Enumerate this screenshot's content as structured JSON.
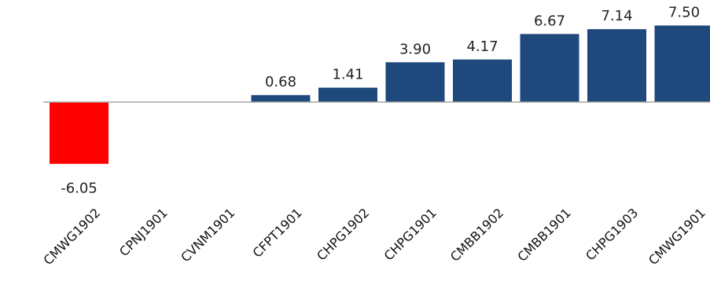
{
  "chart_data": {
    "type": "bar",
    "categories": [
      "CMWG1902",
      "CPNJ1901",
      "CVNM1901",
      "CFPT1901",
      "CHPG1902",
      "CHPG1901",
      "CMBB1902",
      "CMBB1901",
      "CHPG1903",
      "CMWG1901"
    ],
    "values": [
      -6.05,
      0,
      0,
      0.68,
      1.41,
      3.9,
      4.17,
      6.67,
      7.14,
      7.5
    ],
    "value_labels": [
      "-6.05",
      "",
      "",
      "0.68",
      "1.41",
      "3.90",
      "4.17",
      "6.67",
      "7.14",
      "7.50"
    ],
    "title": "",
    "xlabel": "",
    "ylabel": "",
    "ylim": [
      -6.05,
      7.5
    ],
    "grid": false,
    "colors": {
      "positive": "#1f497d",
      "negative": "#ff0000",
      "axis": "#a6a6a6"
    }
  }
}
